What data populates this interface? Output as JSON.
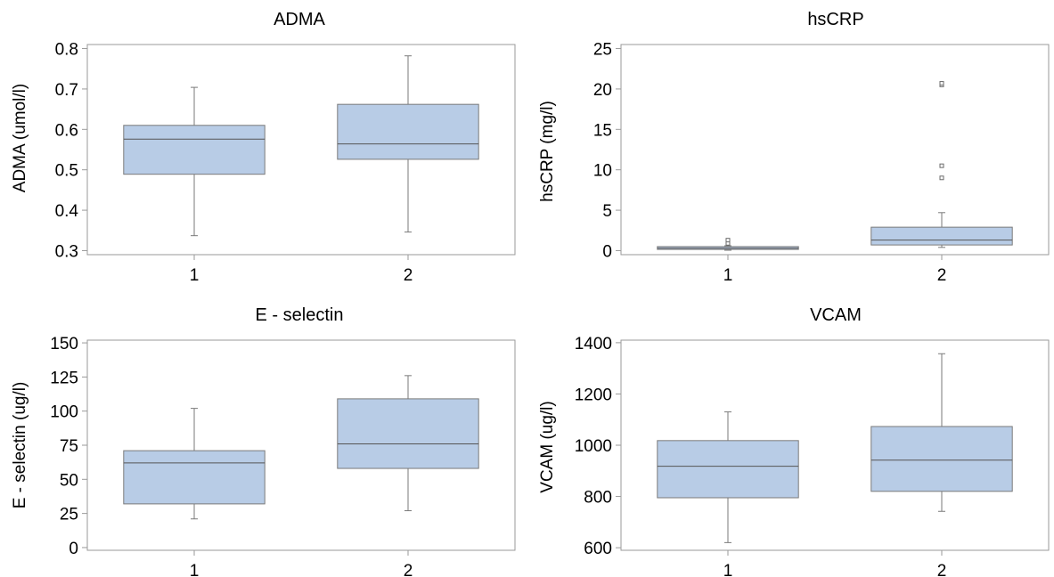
{
  "colors": {
    "box_fill": "#b8cce6",
    "box_stroke": "#7a7a7a",
    "whisker": "#7a7a7a",
    "frame": "#9a9a9a",
    "outlier": "#6a6a6a"
  },
  "chart_data": [
    {
      "type": "box",
      "title": "ADMA",
      "ylabel": "ADMA (umol/l)",
      "categories": [
        "1",
        "2"
      ],
      "ylim": [
        0.29,
        0.81
      ],
      "yticks": [
        0.3,
        0.4,
        0.5,
        0.6,
        0.7,
        0.8
      ],
      "ytick_labels": [
        "0.3",
        "0.4",
        "0.5",
        "0.6",
        "0.7",
        "0.8"
      ],
      "boxes": [
        {
          "category": "1",
          "min": 0.337,
          "q1": 0.489,
          "median": 0.576,
          "q3": 0.61,
          "max": 0.704,
          "outliers": []
        },
        {
          "category": "2",
          "min": 0.346,
          "q1": 0.526,
          "median": 0.564,
          "q3": 0.662,
          "max": 0.782,
          "outliers": []
        }
      ]
    },
    {
      "type": "box",
      "title": "hsCRP",
      "ylabel": "hsCRP (mg/l)",
      "categories": [
        "1",
        "2"
      ],
      "ylim": [
        -0.5,
        25.5
      ],
      "yticks": [
        0,
        5,
        10,
        15,
        20,
        25
      ],
      "ytick_labels": [
        "0",
        "5",
        "10",
        "15",
        "20",
        "25"
      ],
      "boxes": [
        {
          "category": "1",
          "min": 0.05,
          "q1": 0.15,
          "median": 0.3,
          "q3": 0.5,
          "max": 0.6,
          "outliers": [
            0.9,
            1.3
          ]
        },
        {
          "category": "2",
          "min": 0.4,
          "q1": 0.7,
          "median": 1.3,
          "q3": 2.9,
          "max": 4.7,
          "outliers": [
            9.0,
            10.5,
            20.5,
            20.7
          ]
        }
      ]
    },
    {
      "type": "box",
      "title": "E - selectin",
      "ylabel": "E - selectin (ug/l)",
      "categories": [
        "1",
        "2"
      ],
      "ylim": [
        -2,
        152
      ],
      "yticks": [
        0,
        25,
        50,
        75,
        100,
        125,
        150
      ],
      "ytick_labels": [
        "0",
        "25",
        "50",
        "75",
        "100",
        "125",
        "150"
      ],
      "boxes": [
        {
          "category": "1",
          "min": 21,
          "q1": 32,
          "median": 62,
          "q3": 71,
          "max": 102,
          "outliers": []
        },
        {
          "category": "2",
          "min": 27,
          "q1": 58,
          "median": 76,
          "q3": 109,
          "max": 126,
          "outliers": []
        }
      ]
    },
    {
      "type": "box",
      "title": "VCAM",
      "ylabel": "VCAM (ug/l)",
      "categories": [
        "1",
        "2"
      ],
      "ylim": [
        590,
        1410
      ],
      "yticks": [
        600,
        800,
        1000,
        1200,
        1400
      ],
      "ytick_labels": [
        "600",
        "800",
        "1000",
        "1200",
        "1400"
      ],
      "boxes": [
        {
          "category": "1",
          "min": 620,
          "q1": 795,
          "median": 918,
          "q3": 1018,
          "max": 1130,
          "outliers": []
        },
        {
          "category": "2",
          "min": 742,
          "q1": 820,
          "median": 942,
          "q3": 1073,
          "max": 1357,
          "outliers": []
        }
      ]
    }
  ]
}
